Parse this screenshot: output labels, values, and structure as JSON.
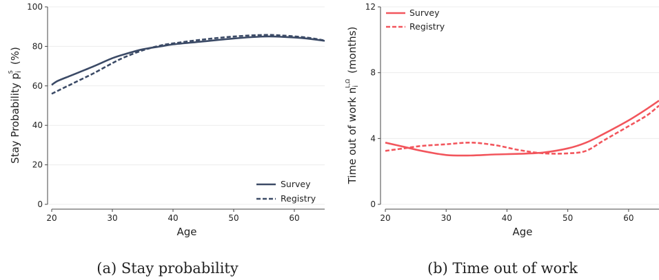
{
  "chart_data": [
    {
      "type": "line",
      "caption": "(a) Stay probability",
      "xlabel": "Age",
      "ylabel_main": "Stay Probability p",
      "ylabel_sub": "i",
      "ylabel_sup": "S",
      "ylabel_unit": "(%)",
      "xlim": [
        20,
        65
      ],
      "ylim": [
        0,
        100
      ],
      "xticks": [
        "20",
        "30",
        "40",
        "50",
        "60"
      ],
      "yticks": [
        "0",
        "20",
        "40",
        "60",
        "80",
        "100"
      ],
      "grid": true,
      "legend_position": "bottom-right",
      "color": "#3b4a66",
      "series": [
        {
          "name": "Survey",
          "style": "solid",
          "x": [
            20,
            21,
            23,
            25,
            27,
            30,
            32,
            35,
            38,
            40,
            45,
            50,
            55,
            58,
            62,
            65
          ],
          "y": [
            60.5,
            62.5,
            65,
            67.5,
            70,
            74,
            76,
            78.5,
            80,
            81,
            82.5,
            84,
            85,
            84.8,
            84,
            82.8
          ]
        },
        {
          "name": "Registry",
          "style": "dashed",
          "x": [
            20,
            21,
            23,
            25,
            27,
            30,
            32,
            35,
            38,
            40,
            45,
            50,
            55,
            58,
            62,
            65
          ],
          "y": [
            56,
            57.5,
            60.5,
            63.5,
            66.5,
            71.5,
            74.5,
            78,
            80.5,
            81.5,
            83.5,
            85,
            85.8,
            85.5,
            84.5,
            83
          ]
        }
      ]
    },
    {
      "type": "line",
      "caption": "(b) Time out of work",
      "xlabel": "Age",
      "ylabel_main": "Time out of work n",
      "ylabel_sub": "i",
      "ylabel_sup": "L,Ω",
      "ylabel_unit": "(months)",
      "xlim": [
        20,
        65
      ],
      "ylim": [
        0,
        12
      ],
      "xticks": [
        "20",
        "30",
        "40",
        "50",
        "60"
      ],
      "yticks": [
        "0",
        "4",
        "8",
        "12"
      ],
      "grid": true,
      "legend_position": "top-left",
      "color": "#f2555c",
      "series": [
        {
          "name": "Survey",
          "style": "solid",
          "x": [
            20,
            23,
            26,
            30,
            34,
            38,
            42,
            46,
            50,
            53,
            56,
            60,
            63,
            65
          ],
          "y": [
            3.75,
            3.5,
            3.25,
            3.0,
            2.97,
            3.03,
            3.07,
            3.15,
            3.4,
            3.75,
            4.3,
            5.1,
            5.8,
            6.3
          ]
        },
        {
          "name": "Registry",
          "style": "dashed",
          "x": [
            20,
            23,
            26,
            30,
            34,
            38,
            42,
            46,
            50,
            53,
            56,
            60,
            63,
            65
          ],
          "y": [
            3.25,
            3.4,
            3.55,
            3.65,
            3.75,
            3.6,
            3.3,
            3.1,
            3.1,
            3.25,
            3.9,
            4.75,
            5.4,
            6.0
          ]
        }
      ]
    }
  ]
}
